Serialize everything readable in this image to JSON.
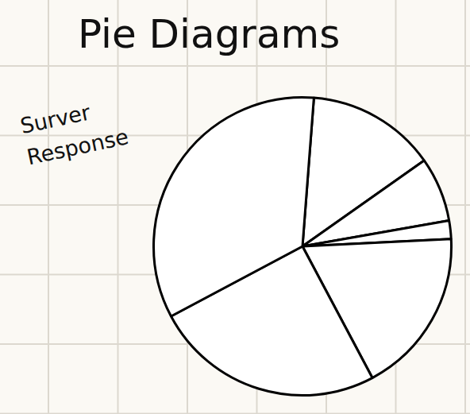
{
  "chart_data": {
    "type": "pie",
    "title": "Pie Diagrams",
    "subtitle": "Surver Response",
    "categories": [
      null,
      null,
      null,
      null,
      null,
      null
    ],
    "values": [
      14,
      7,
      2,
      18,
      25,
      34
    ],
    "color": "#ffffff"
  }
}
